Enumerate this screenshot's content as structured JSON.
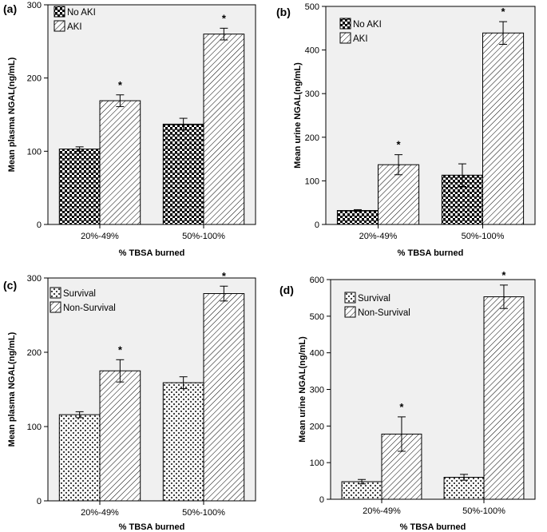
{
  "chart_data": [
    {
      "type": "bar",
      "panel_label": "(a)",
      "categories": [
        "20%-49%",
        "50%-100%"
      ],
      "series": [
        {
          "name": "No AKI",
          "pattern": "checker",
          "values": [
            103,
            137
          ],
          "errors": [
            3,
            8
          ],
          "stars": [
            "",
            ""
          ]
        },
        {
          "name": "AKI",
          "pattern": "hatch",
          "values": [
            169,
            260
          ],
          "errors": [
            8,
            8
          ],
          "stars": [
            "*",
            "*"
          ]
        }
      ],
      "xlabel": "% TBSA burned",
      "ylabel": "Mean plasma NGAL(ng/mL)",
      "ylim": [
        0,
        300
      ],
      "yticks": [
        "0",
        "100",
        "200",
        "300"
      ],
      "yticks_values": [
        0,
        100,
        200,
        300
      ],
      "legend": "top-left"
    },
    {
      "type": "bar",
      "panel_label": "(b)",
      "categories": [
        "20%-49%",
        "50%-100%"
      ],
      "series": [
        {
          "name": "No AKI",
          "pattern": "checker",
          "values": [
            32,
            113
          ],
          "errors": [
            2,
            26
          ],
          "stars": [
            "",
            ""
          ]
        },
        {
          "name": "AKI",
          "pattern": "hatch",
          "values": [
            137,
            439
          ],
          "errors": [
            23,
            26
          ],
          "stars": [
            "*",
            "*"
          ]
        }
      ],
      "xlabel": "% TBSA burned",
      "ylabel": "Mean urine NGAL(ng/mL)",
      "ylim": [
        0,
        500
      ],
      "yticks": [
        "0",
        "100",
        "200",
        "300",
        "400",
        "500"
      ],
      "yticks_values": [
        0,
        100,
        200,
        300,
        400,
        500
      ],
      "legend": "top-left"
    },
    {
      "type": "bar",
      "panel_label": "(c)",
      "categories": [
        "20%-49%",
        "50%-100%"
      ],
      "series": [
        {
          "name": "Survival",
          "pattern": "cross",
          "values": [
            116,
            159
          ],
          "errors": [
            4,
            8
          ],
          "stars": [
            "",
            ""
          ]
        },
        {
          "name": "Non-Survival",
          "pattern": "hatch",
          "values": [
            175,
            279
          ],
          "errors": [
            15,
            10
          ],
          "stars": [
            "*",
            "*"
          ]
        }
      ],
      "xlabel": "% TBSA burned",
      "ylabel": "Mean plasma NGAL(ng/mL)",
      "ylim": [
        0,
        300
      ],
      "yticks": [
        "0",
        "100",
        "200",
        "300"
      ],
      "yticks_values": [
        0,
        100,
        200,
        300
      ],
      "legend": "top-left"
    },
    {
      "type": "bar",
      "panel_label": "(d)",
      "categories": [
        "20%-49%",
        "50%-100%"
      ],
      "series": [
        {
          "name": "Survival",
          "pattern": "cross",
          "values": [
            48,
            60
          ],
          "errors": [
            6,
            8
          ],
          "stars": [
            "",
            ""
          ]
        },
        {
          "name": "Non-Survival",
          "pattern": "hatch",
          "values": [
            178,
            553
          ],
          "errors": [
            47,
            32
          ],
          "stars": [
            "*",
            "*"
          ]
        }
      ],
      "xlabel": "% TBSA burned",
      "ylabel": "Mean urine NGAL(ng/mL)",
      "ylim": [
        0,
        600
      ],
      "yticks": [
        "0",
        "100",
        "200",
        "300",
        "400",
        "500",
        "600"
      ],
      "yticks_values": [
        0,
        100,
        200,
        300,
        400,
        500,
        600
      ],
      "legend": "top-left"
    }
  ],
  "colors": {
    "plot_background": "#f0f0f0",
    "bar_fill_dark": "#000000",
    "bar_fill_light": "#ffffff",
    "stroke": "#000000"
  }
}
